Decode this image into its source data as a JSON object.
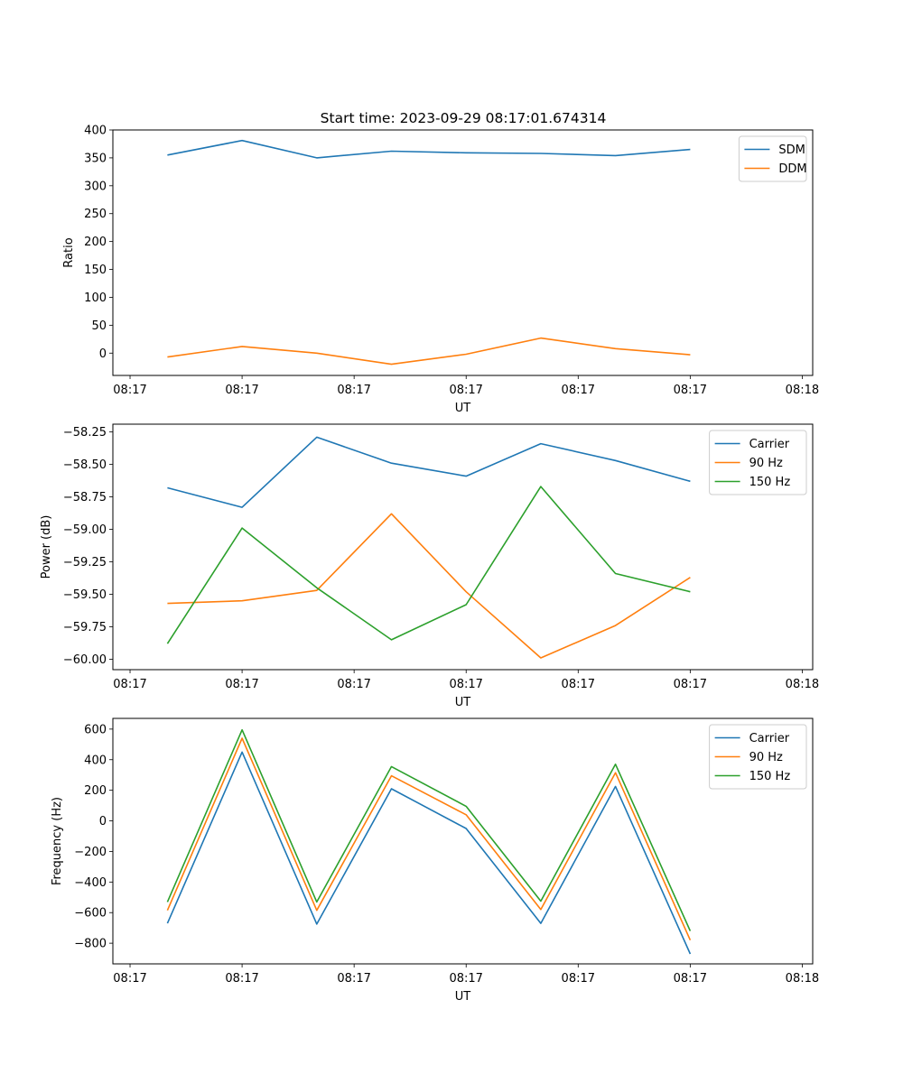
{
  "figure": {
    "title": "Start time: 2023-09-29 08:17:01.674314"
  },
  "chart_data": [
    {
      "type": "line",
      "title": "Start time: 2023-09-29 08:17:01.674314",
      "xlabel": "UT",
      "ylabel": "Ratio",
      "xlim": [
        -0.73,
        8.64
      ],
      "ylim": [
        -40,
        400
      ],
      "x_ticks": [
        {
          "value": -0.5,
          "label": "08:17"
        },
        {
          "value": 1.0,
          "label": "08:17"
        },
        {
          "value": 2.5,
          "label": "08:17"
        },
        {
          "value": 4.0,
          "label": "08:17"
        },
        {
          "value": 5.5,
          "label": "08:17"
        },
        {
          "value": 7.0,
          "label": "08:17"
        },
        {
          "value": 8.5,
          "label": "08:18"
        }
      ],
      "y_ticks": [
        {
          "value": 400,
          "label": "400"
        },
        {
          "value": 350,
          "label": "350"
        },
        {
          "value": 300,
          "label": "300"
        },
        {
          "value": 250,
          "label": "250"
        },
        {
          "value": 200,
          "label": "200"
        },
        {
          "value": 150,
          "label": "150"
        },
        {
          "value": 100,
          "label": "100"
        },
        {
          "value": 50,
          "label": "50"
        },
        {
          "value": 0,
          "label": "0"
        }
      ],
      "x": [
        0,
        1,
        2,
        3,
        4,
        5,
        6,
        7
      ],
      "series": [
        {
          "name": "SDM",
          "color": "#1f77b4",
          "values": [
            355,
            381,
            350,
            362,
            359,
            358,
            354,
            365
          ]
        },
        {
          "name": "DDM",
          "color": "#ff7f0e",
          "values": [
            -7,
            12,
            0,
            -20,
            -2,
            27,
            8,
            -3
          ]
        }
      ],
      "legend": "top-right"
    },
    {
      "type": "line",
      "title": "",
      "xlabel": "UT",
      "ylabel": "Power (dB)",
      "xlim": [
        -0.73,
        8.64
      ],
      "ylim": [
        -60.08,
        -58.19
      ],
      "x_ticks": [
        {
          "value": -0.5,
          "label": "08:17"
        },
        {
          "value": 1.0,
          "label": "08:17"
        },
        {
          "value": 2.5,
          "label": "08:17"
        },
        {
          "value": 4.0,
          "label": "08:17"
        },
        {
          "value": 5.5,
          "label": "08:17"
        },
        {
          "value": 7.0,
          "label": "08:17"
        },
        {
          "value": 8.5,
          "label": "08:18"
        }
      ],
      "y_ticks": [
        {
          "value": -58.25,
          "label": "−58.25"
        },
        {
          "value": -58.5,
          "label": "−58.50"
        },
        {
          "value": -58.75,
          "label": "−58.75"
        },
        {
          "value": -59.0,
          "label": "−59.00"
        },
        {
          "value": -59.25,
          "label": "−59.25"
        },
        {
          "value": -59.5,
          "label": "−59.50"
        },
        {
          "value": -59.75,
          "label": "−59.75"
        },
        {
          "value": -60.0,
          "label": "−60.00"
        }
      ],
      "x": [
        0,
        1,
        2,
        3,
        4,
        5,
        6,
        7
      ],
      "series": [
        {
          "name": "Carrier",
          "color": "#1f77b4",
          "values": [
            -58.68,
            -58.83,
            -58.29,
            -58.49,
            -58.59,
            -58.34,
            -58.47,
            -58.63
          ]
        },
        {
          "name": "90 Hz",
          "color": "#ff7f0e",
          "values": [
            -59.57,
            -59.55,
            -59.47,
            -58.88,
            -59.48,
            -59.99,
            -59.74,
            -59.37
          ]
        },
        {
          "name": "150 Hz",
          "color": "#2ca02c",
          "values": [
            -59.88,
            -58.99,
            -59.45,
            -59.85,
            -59.58,
            -58.67,
            -59.34,
            -59.48
          ]
        }
      ],
      "legend": "top-right"
    },
    {
      "type": "line",
      "title": "",
      "xlabel": "UT",
      "ylabel": "Frequency (Hz)",
      "xlim": [
        -0.73,
        8.64
      ],
      "ylim": [
        -935,
        670
      ],
      "x_ticks": [
        {
          "value": -0.5,
          "label": "08:17"
        },
        {
          "value": 1.0,
          "label": "08:17"
        },
        {
          "value": 2.5,
          "label": "08:17"
        },
        {
          "value": 4.0,
          "label": "08:17"
        },
        {
          "value": 5.5,
          "label": "08:17"
        },
        {
          "value": 7.0,
          "label": "08:17"
        },
        {
          "value": 8.5,
          "label": "08:18"
        }
      ],
      "y_ticks": [
        {
          "value": 600,
          "label": "600"
        },
        {
          "value": 400,
          "label": "400"
        },
        {
          "value": 200,
          "label": "200"
        },
        {
          "value": 0,
          "label": "0"
        },
        {
          "value": -200,
          "label": "−200"
        },
        {
          "value": -400,
          "label": "−400"
        },
        {
          "value": -600,
          "label": "−600"
        },
        {
          "value": -800,
          "label": "−800"
        }
      ],
      "x": [
        0,
        1,
        2,
        3,
        4,
        5,
        6,
        7
      ],
      "series": [
        {
          "name": "Carrier",
          "color": "#1f77b4",
          "values": [
            -670,
            450,
            -675,
            210,
            -50,
            -670,
            225,
            -870
          ]
        },
        {
          "name": "90 Hz",
          "color": "#ff7f0e",
          "values": [
            -585,
            540,
            -585,
            295,
            40,
            -580,
            315,
            -780
          ]
        },
        {
          "name": "150 Hz",
          "color": "#2ca02c",
          "values": [
            -530,
            595,
            -530,
            355,
            95,
            -525,
            370,
            -720
          ]
        }
      ],
      "legend": "top-right"
    }
  ]
}
